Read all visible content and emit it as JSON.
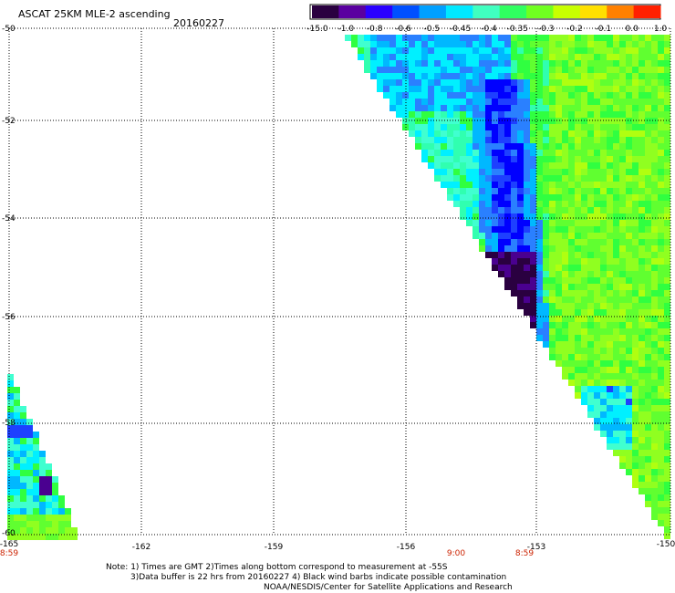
{
  "title": "ASCAT 25KM MLE-2 ascending",
  "date": "20160227",
  "colorbar": {
    "labels": [
      "-15.0",
      "-1.0",
      "-0.8",
      "-0.6",
      "-0.5",
      "-0.45",
      "-0.4",
      "-0.35",
      "-0.3",
      "-0.2",
      "-0.1",
      "0.0",
      "1.0"
    ],
    "colors": [
      "#2a0040",
      "#5a00a0",
      "#2a00ff",
      "#0050ff",
      "#00a0ff",
      "#00e8ff",
      "#40ffc0",
      "#30ff60",
      "#70ff20",
      "#c8ff00",
      "#ffe000",
      "#ff8000",
      "#ff2000"
    ]
  },
  "axes": {
    "lat_labels": [
      "-50",
      "-52",
      "-54",
      "-56",
      "-58",
      "-60"
    ],
    "lon_labels": [
      "-165",
      "-162",
      "-159",
      "-156",
      "-153",
      "-150"
    ],
    "lat_range": [
      -60,
      -50
    ],
    "lon_range": [
      -165,
      -150
    ]
  },
  "times": [
    {
      "label": "8:59",
      "lon": -165
    },
    {
      "label": "9:00",
      "lon": -154.7
    },
    {
      "label": "8:59",
      "lon": -153
    }
  ],
  "notes": [
    "Note: 1) Times are GMT 2)Times along bottom correspond to measurement at -55S",
    "3)Data buffer is 22 hrs from 20160227 4) Black wind barbs indicate possible contamination",
    "NOAA/NESDIS/Center for Satellite Applications and Research"
  ]
}
